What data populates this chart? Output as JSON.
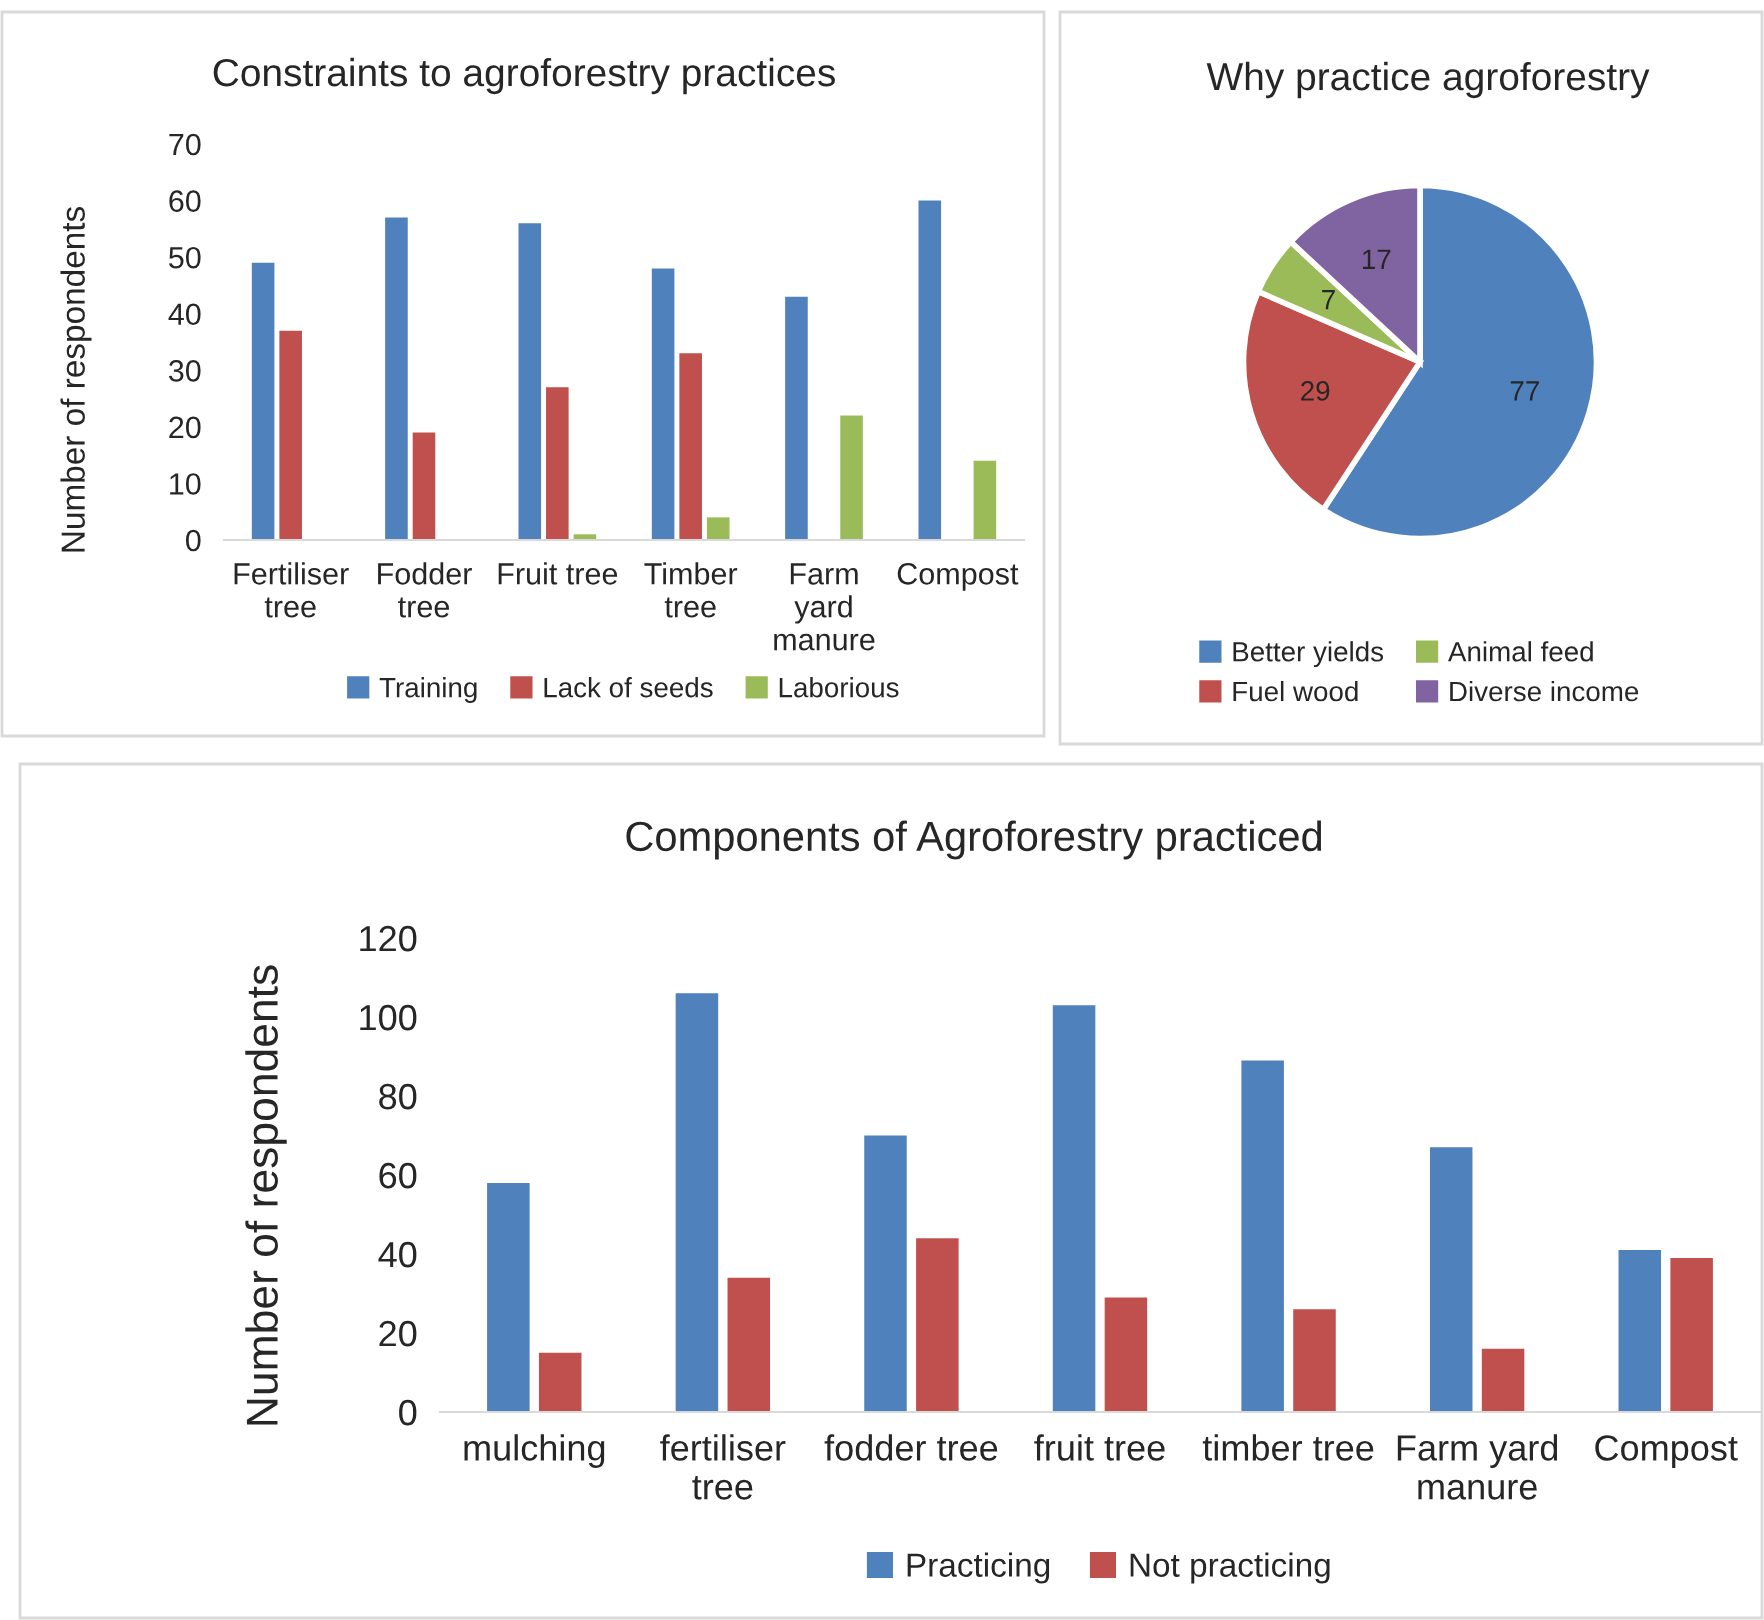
{
  "chart_data": [
    {
      "type": "bar",
      "title": "Constraints to agroforestry practices",
      "ylabel": "Number of respondents",
      "categories": [
        "Fertiliser\ntree",
        "Fodder\ntree",
        "Fruit tree",
        "Timber\ntree",
        "Farm\nyard\nmanure",
        "Compost"
      ],
      "series": [
        {
          "name": "Training",
          "color": "#4f81bd",
          "values": [
            49,
            57,
            56,
            48,
            43,
            60
          ]
        },
        {
          "name": "Lack of seeds",
          "color": "#c0504d",
          "values": [
            37,
            19,
            27,
            33,
            null,
            null
          ]
        },
        {
          "name": "Laborious",
          "color": "#9bbb59",
          "values": [
            null,
            null,
            1,
            4,
            22,
            14
          ]
        }
      ],
      "ylim": [
        0,
        70
      ],
      "yticks": [
        0,
        10,
        20,
        30,
        40,
        50,
        60,
        70
      ],
      "grid": false,
      "legend": "bottom"
    },
    {
      "type": "pie",
      "title": "Why practice agroforestry",
      "categories": [
        "Better yields",
        "Fuel wood",
        "Animal feed",
        "Diverse income"
      ],
      "values": [
        77,
        29,
        7,
        17
      ],
      "colors": [
        "#4f81bd",
        "#c0504d",
        "#9bbb59",
        "#8064a2"
      ],
      "data_labels": true,
      "legend": "bottom"
    },
    {
      "type": "bar",
      "title": "Components of Agroforestry practiced",
      "ylabel": "Number of respondents",
      "categories": [
        "mulching",
        "fertiliser\ntree",
        "fodder tree",
        "fruit tree",
        "timber tree",
        "Farm yard\nmanure",
        "Compost"
      ],
      "series": [
        {
          "name": "Practicing",
          "color": "#4f81bd",
          "values": [
            58,
            106,
            70,
            103,
            89,
            67,
            41
          ]
        },
        {
          "name": "Not practicing",
          "color": "#c0504d",
          "values": [
            15,
            34,
            44,
            29,
            26,
            16,
            39
          ]
        }
      ],
      "ylim": [
        0,
        120
      ],
      "yticks": [
        0,
        20,
        40,
        60,
        80,
        100,
        120
      ],
      "grid": false,
      "legend": "bottom"
    }
  ]
}
